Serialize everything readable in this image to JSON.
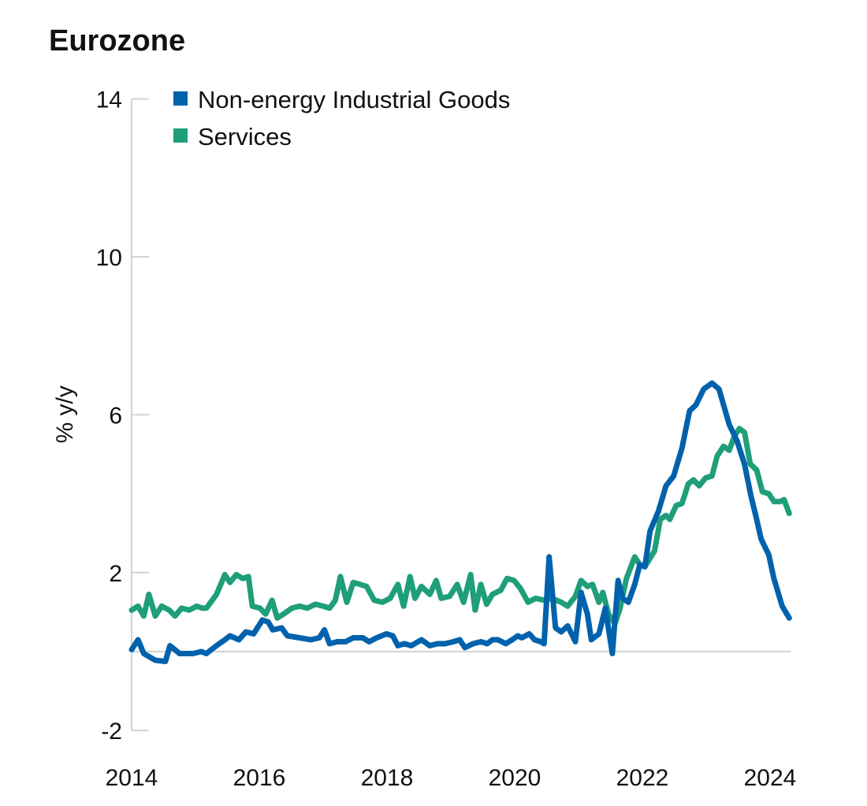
{
  "chart_data": {
    "type": "line",
    "title": "Eurozone",
    "ylabel": "% y/y",
    "xlabel": "",
    "ylim": [
      -2,
      14
    ],
    "yticks": [
      -2,
      2,
      6,
      10,
      14
    ],
    "xlim": [
      2014,
      2024.3
    ],
    "xticks": [
      2014,
      2016,
      2018,
      2020,
      2022,
      2024
    ],
    "grid": "zero-line only",
    "legend_placement": "top-left",
    "series": [
      {
        "name": "Non-energy Industrial Goods",
        "color": "#0062ac",
        "points": [
          [
            2014.0,
            0.05
          ],
          [
            2014.1,
            0.3
          ],
          [
            2014.19,
            -0.05
          ],
          [
            2014.37,
            -0.22
          ],
          [
            2014.53,
            -0.25
          ],
          [
            2014.6,
            0.15
          ],
          [
            2014.75,
            -0.05
          ],
          [
            2014.96,
            -0.05
          ],
          [
            2015.09,
            0.0
          ],
          [
            2015.17,
            -0.05
          ],
          [
            2015.33,
            0.15
          ],
          [
            2015.46,
            0.3
          ],
          [
            2015.54,
            0.4
          ],
          [
            2015.68,
            0.3
          ],
          [
            2015.79,
            0.5
          ],
          [
            2015.91,
            0.45
          ],
          [
            2016.05,
            0.8
          ],
          [
            2016.14,
            0.75
          ],
          [
            2016.21,
            0.55
          ],
          [
            2016.35,
            0.6
          ],
          [
            2016.44,
            0.4
          ],
          [
            2016.63,
            0.35
          ],
          [
            2016.81,
            0.3
          ],
          [
            2016.94,
            0.35
          ],
          [
            2017.02,
            0.55
          ],
          [
            2017.1,
            0.2
          ],
          [
            2017.22,
            0.25
          ],
          [
            2017.35,
            0.25
          ],
          [
            2017.47,
            0.35
          ],
          [
            2017.62,
            0.35
          ],
          [
            2017.72,
            0.25
          ],
          [
            2017.84,
            0.35
          ],
          [
            2017.99,
            0.45
          ],
          [
            2018.09,
            0.4
          ],
          [
            2018.17,
            0.15
          ],
          [
            2018.27,
            0.2
          ],
          [
            2018.38,
            0.15
          ],
          [
            2018.54,
            0.3
          ],
          [
            2018.67,
            0.15
          ],
          [
            2018.79,
            0.2
          ],
          [
            2018.91,
            0.2
          ],
          [
            2019.04,
            0.25
          ],
          [
            2019.14,
            0.3
          ],
          [
            2019.22,
            0.1
          ],
          [
            2019.35,
            0.2
          ],
          [
            2019.47,
            0.25
          ],
          [
            2019.57,
            0.2
          ],
          [
            2019.65,
            0.3
          ],
          [
            2019.74,
            0.3
          ],
          [
            2019.86,
            0.2
          ],
          [
            2019.96,
            0.3
          ],
          [
            2020.05,
            0.4
          ],
          [
            2020.11,
            0.35
          ],
          [
            2020.23,
            0.45
          ],
          [
            2020.31,
            0.3
          ],
          [
            2020.41,
            0.25
          ],
          [
            2020.46,
            0.2
          ],
          [
            2020.54,
            2.4
          ],
          [
            2020.64,
            0.6
          ],
          [
            2020.73,
            0.5
          ],
          [
            2020.83,
            0.65
          ],
          [
            2020.95,
            0.25
          ],
          [
            2021.04,
            1.5
          ],
          [
            2021.14,
            0.95
          ],
          [
            2021.2,
            0.3
          ],
          [
            2021.32,
            0.45
          ],
          [
            2021.42,
            1.1
          ],
          [
            2021.53,
            -0.05
          ],
          [
            2021.62,
            1.8
          ],
          [
            2021.69,
            1.35
          ],
          [
            2021.78,
            1.25
          ],
          [
            2021.88,
            1.7
          ],
          [
            2021.96,
            2.2
          ],
          [
            2022.04,
            2.15
          ],
          [
            2022.12,
            3.05
          ],
          [
            2022.25,
            3.55
          ],
          [
            2022.37,
            4.2
          ],
          [
            2022.49,
            4.45
          ],
          [
            2022.62,
            5.15
          ],
          [
            2022.74,
            6.1
          ],
          [
            2022.84,
            6.25
          ],
          [
            2022.96,
            6.65
          ],
          [
            2023.09,
            6.8
          ],
          [
            2023.2,
            6.65
          ],
          [
            2023.36,
            5.75
          ],
          [
            2023.48,
            5.35
          ],
          [
            2023.6,
            4.75
          ],
          [
            2023.7,
            3.95
          ],
          [
            2023.79,
            3.35
          ],
          [
            2023.86,
            2.85
          ],
          [
            2023.98,
            2.45
          ],
          [
            2024.06,
            1.85
          ],
          [
            2024.19,
            1.15
          ],
          [
            2024.3,
            0.85
          ]
        ]
      },
      {
        "name": "Services",
        "color": "#1f9e7a",
        "points": [
          [
            2014.0,
            1.05
          ],
          [
            2014.1,
            1.15
          ],
          [
            2014.19,
            0.9
          ],
          [
            2014.27,
            1.45
          ],
          [
            2014.37,
            0.9
          ],
          [
            2014.47,
            1.15
          ],
          [
            2014.59,
            1.05
          ],
          [
            2014.68,
            0.9
          ],
          [
            2014.78,
            1.1
          ],
          [
            2014.9,
            1.05
          ],
          [
            2015.02,
            1.15
          ],
          [
            2015.11,
            1.1
          ],
          [
            2015.17,
            1.1
          ],
          [
            2015.33,
            1.45
          ],
          [
            2015.46,
            1.95
          ],
          [
            2015.54,
            1.75
          ],
          [
            2015.64,
            1.95
          ],
          [
            2015.74,
            1.85
          ],
          [
            2015.83,
            1.9
          ],
          [
            2015.89,
            1.15
          ],
          [
            2016.01,
            1.1
          ],
          [
            2016.1,
            0.95
          ],
          [
            2016.2,
            1.3
          ],
          [
            2016.28,
            0.85
          ],
          [
            2016.38,
            0.95
          ],
          [
            2016.51,
            1.1
          ],
          [
            2016.63,
            1.15
          ],
          [
            2016.75,
            1.1
          ],
          [
            2016.88,
            1.2
          ],
          [
            2017.0,
            1.15
          ],
          [
            2017.1,
            1.1
          ],
          [
            2017.19,
            1.3
          ],
          [
            2017.27,
            1.9
          ],
          [
            2017.37,
            1.25
          ],
          [
            2017.47,
            1.75
          ],
          [
            2017.58,
            1.7
          ],
          [
            2017.68,
            1.65
          ],
          [
            2017.8,
            1.3
          ],
          [
            2017.93,
            1.25
          ],
          [
            2018.05,
            1.35
          ],
          [
            2018.17,
            1.7
          ],
          [
            2018.26,
            1.15
          ],
          [
            2018.36,
            1.9
          ],
          [
            2018.44,
            1.35
          ],
          [
            2018.54,
            1.65
          ],
          [
            2018.67,
            1.45
          ],
          [
            2018.77,
            1.8
          ],
          [
            2018.85,
            1.35
          ],
          [
            2018.98,
            1.4
          ],
          [
            2019.1,
            1.7
          ],
          [
            2019.2,
            1.25
          ],
          [
            2019.31,
            1.95
          ],
          [
            2019.38,
            1.05
          ],
          [
            2019.47,
            1.7
          ],
          [
            2019.56,
            1.2
          ],
          [
            2019.65,
            1.45
          ],
          [
            2019.78,
            1.55
          ],
          [
            2019.88,
            1.85
          ],
          [
            2019.99,
            1.8
          ],
          [
            2020.09,
            1.6
          ],
          [
            2020.21,
            1.25
          ],
          [
            2020.33,
            1.35
          ],
          [
            2020.46,
            1.3
          ],
          [
            2020.58,
            1.35
          ],
          [
            2020.73,
            1.25
          ],
          [
            2020.83,
            1.15
          ],
          [
            2020.95,
            1.4
          ],
          [
            2021.04,
            1.8
          ],
          [
            2021.14,
            1.65
          ],
          [
            2021.22,
            1.7
          ],
          [
            2021.32,
            1.25
          ],
          [
            2021.38,
            1.5
          ],
          [
            2021.47,
            0.95
          ],
          [
            2021.57,
            0.7
          ],
          [
            2021.65,
            1.1
          ],
          [
            2021.75,
            1.85
          ],
          [
            2021.88,
            2.4
          ],
          [
            2021.96,
            2.2
          ],
          [
            2022.04,
            2.15
          ],
          [
            2022.19,
            2.55
          ],
          [
            2022.28,
            3.35
          ],
          [
            2022.37,
            3.45
          ],
          [
            2022.43,
            3.35
          ],
          [
            2022.53,
            3.7
          ],
          [
            2022.62,
            3.75
          ],
          [
            2022.72,
            4.25
          ],
          [
            2022.8,
            4.35
          ],
          [
            2022.89,
            4.2
          ],
          [
            2022.99,
            4.4
          ],
          [
            2023.09,
            4.45
          ],
          [
            2023.17,
            4.95
          ],
          [
            2023.27,
            5.2
          ],
          [
            2023.36,
            5.1
          ],
          [
            2023.44,
            5.45
          ],
          [
            2023.52,
            5.65
          ],
          [
            2023.6,
            5.55
          ],
          [
            2023.69,
            4.75
          ],
          [
            2023.79,
            4.6
          ],
          [
            2023.88,
            4.05
          ],
          [
            2023.98,
            4.0
          ],
          [
            2024.06,
            3.8
          ],
          [
            2024.16,
            3.8
          ],
          [
            2024.22,
            3.85
          ],
          [
            2024.3,
            3.5
          ]
        ]
      }
    ]
  }
}
